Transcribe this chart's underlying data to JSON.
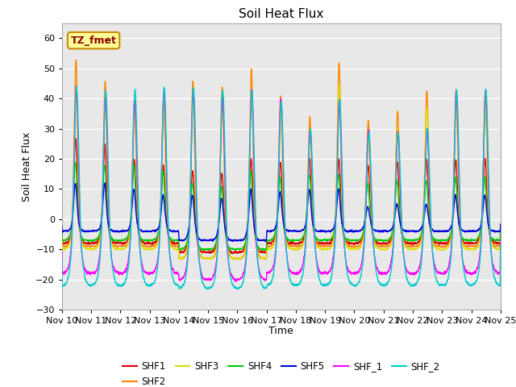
{
  "title": "Soil Heat Flux",
  "xlabel": "Time",
  "ylabel": "Soil Heat Flux",
  "ylim": [
    -30,
    65
  ],
  "yticks": [
    -30,
    -20,
    -10,
    0,
    10,
    20,
    30,
    40,
    50,
    60
  ],
  "num_days": 15,
  "points_per_day": 288,
  "series_colors": {
    "SHF1": "#dd0000",
    "SHF2": "#ff8800",
    "SHF3": "#dddd00",
    "SHF4": "#00cc00",
    "SHF5": "#0000dd",
    "SHF_1": "#ff00ff",
    "SHF_2": "#00cccc"
  },
  "legend_label": "TZ_fmet",
  "plot_bg_color": "#e8e8e8",
  "annotation_box_color": "#ffff99",
  "annotation_box_edge": "#cc8800",
  "shf2_peaks": [
    53,
    46,
    40,
    41,
    46,
    44,
    50,
    41,
    34,
    52,
    33,
    36,
    43,
    43,
    42
  ],
  "shf3_peaks": [
    44,
    38,
    35,
    35,
    41,
    38,
    43,
    36,
    29,
    45,
    28,
    30,
    37,
    37,
    36
  ],
  "shf1_peaks": [
    27,
    25,
    20,
    18,
    16,
    15,
    20,
    19,
    20,
    20,
    18,
    19,
    20,
    20,
    20
  ],
  "shf4_peaks": [
    19,
    18,
    18,
    16,
    12,
    11,
    16,
    14,
    15,
    15,
    12,
    13,
    13,
    14,
    14
  ],
  "shf5_peaks": [
    12,
    12,
    10,
    8,
    8,
    7,
    10,
    9,
    10,
    10,
    4,
    5,
    5,
    8,
    8
  ],
  "shf_1_peaks": [
    44,
    41,
    39,
    43,
    43,
    41,
    43,
    40,
    30,
    40,
    30,
    29,
    30,
    43,
    43
  ],
  "shf_2_peaks": [
    44,
    43,
    43,
    44,
    44,
    43,
    43,
    39,
    30,
    40,
    29,
    29,
    30,
    43,
    43
  ],
  "shf2_nights": [
    -9,
    -9,
    -9,
    -9,
    -13,
    -13,
    -13,
    -9,
    -9,
    -9,
    -9,
    -9,
    -9,
    -9,
    -9
  ],
  "shf3_nights": [
    -10,
    -10,
    -10,
    -10,
    -13,
    -13,
    -13,
    -10,
    -10,
    -10,
    -10,
    -10,
    -10,
    -10,
    -10
  ],
  "shf1_nights": [
    -8,
    -8,
    -8,
    -8,
    -11,
    -11,
    -11,
    -8,
    -8,
    -8,
    -8,
    -8,
    -8,
    -8,
    -8
  ],
  "shf4_nights": [
    -7,
    -7,
    -7,
    -7,
    -10,
    -10,
    -10,
    -7,
    -7,
    -7,
    -7,
    -7,
    -7,
    -7,
    -7
  ],
  "shf5_nights": [
    -4,
    -4,
    -4,
    -4,
    -7,
    -7,
    -7,
    -4,
    -4,
    -4,
    -4,
    -4,
    -4,
    -4,
    -4
  ],
  "shf_1_nights": [
    -18,
    -18,
    -18,
    -18,
    -20,
    -20,
    -20,
    -18,
    -18,
    -18,
    -18,
    -18,
    -18,
    -18,
    -18
  ],
  "shf_2_nights": [
    -22,
    -22,
    -22,
    -22,
    -23,
    -23,
    -23,
    -22,
    -22,
    -22,
    -22,
    -22,
    -22,
    -22,
    -22
  ]
}
